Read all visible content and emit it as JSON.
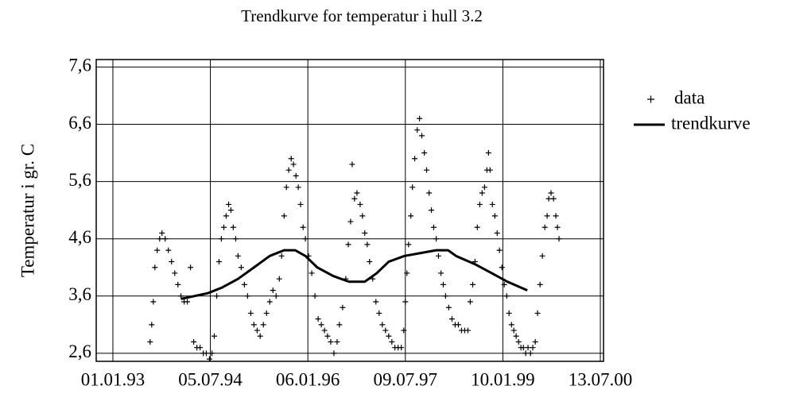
{
  "chart_data": {
    "type": "scatter",
    "title": "Trendkurve for temperatur i hull 3.2",
    "y_label": "Temperatur i gr. C",
    "xlim": [
      "1992-09-29",
      "2000-07-31"
    ],
    "ylim": [
      2.46,
      7.73
    ],
    "xticks": [
      {
        "value": "1993-01-01",
        "label": "01.01.93"
      },
      {
        "value": "1994-07-05",
        "label": "05.07.94"
      },
      {
        "value": "1996-01-06",
        "label": "06.01.96"
      },
      {
        "value": "1997-07-09",
        "label": "09.07.97"
      },
      {
        "value": "1999-01-10",
        "label": "10.01.99"
      },
      {
        "value": "2000-07-13",
        "label": "13.07.00"
      }
    ],
    "yticks": [
      {
        "value": 2.6,
        "label": "2,6"
      },
      {
        "value": 3.6,
        "label": "3,6"
      },
      {
        "value": 4.6,
        "label": "4,6"
      },
      {
        "value": 5.6,
        "label": "5,6"
      },
      {
        "value": 6.6,
        "label": "6,6"
      },
      {
        "value": 7.6,
        "label": "7,6"
      }
    ],
    "grid": true,
    "legend": "right",
    "series": [
      {
        "name": "data",
        "type": "scatter",
        "color": "#000000",
        "x": [
          "1993-07-30",
          "1993-08-08",
          "1993-08-17",
          "1993-08-26",
          "1993-09-08",
          "1993-09-22",
          "1993-10-05",
          "1993-10-23",
          "1993-11-10",
          "1993-11-28",
          "1993-12-16",
          "1994-01-03",
          "1994-01-20",
          "1994-02-07",
          "1994-02-25",
          "1994-03-15",
          "1994-04-02",
          "1994-04-20",
          "1994-05-08",
          "1994-05-26",
          "1994-06-12",
          "1994-06-30",
          "1994-07-14",
          "1994-07-27",
          "1994-08-10",
          "1994-08-23",
          "1994-09-05",
          "1994-09-19",
          "1994-10-02",
          "1994-10-16",
          "1994-10-29",
          "1994-11-11",
          "1994-11-25",
          "1994-12-08",
          "1994-12-26",
          "1995-01-13",
          "1995-01-31",
          "1995-02-18",
          "1995-03-08",
          "1995-03-26",
          "1995-04-12",
          "1995-04-30",
          "1995-05-18",
          "1995-06-05",
          "1995-06-23",
          "1995-07-11",
          "1995-07-29",
          "1995-08-11",
          "1995-08-25",
          "1995-09-07",
          "1995-09-20",
          "1995-10-04",
          "1995-10-17",
          "1995-10-31",
          "1995-11-13",
          "1995-11-26",
          "1995-12-10",
          "1995-12-23",
          "1996-01-10",
          "1996-01-28",
          "1996-02-15",
          "1996-03-04",
          "1996-03-22",
          "1996-04-09",
          "1996-04-26",
          "1996-05-14",
          "1996-06-01",
          "1996-06-19",
          "1996-07-02",
          "1996-07-20",
          "1996-08-07",
          "1996-08-21",
          "1996-09-03",
          "1996-09-12",
          "1996-09-25",
          "1996-10-09",
          "1996-10-27",
          "1996-11-09",
          "1996-11-22",
          "1996-12-06",
          "1996-12-19",
          "1997-01-06",
          "1997-01-24",
          "1997-02-11",
          "1997-03-01",
          "1997-03-19",
          "1997-04-06",
          "1997-04-24",
          "1997-05-11",
          "1997-05-29",
          "1997-06-16",
          "1997-06-30",
          "1997-07-09",
          "1997-07-18",
          "1997-07-27",
          "1997-08-09",
          "1997-08-18",
          "1997-08-31",
          "1997-09-14",
          "1997-09-27",
          "1997-10-10",
          "1997-10-24",
          "1997-11-06",
          "1997-11-20",
          "1997-12-03",
          "1997-12-16",
          "1997-12-30",
          "1998-01-12",
          "1998-01-26",
          "1998-02-08",
          "1998-02-21",
          "1998-03-11",
          "1998-03-29",
          "1998-04-16",
          "1998-05-04",
          "1998-05-22",
          "1998-06-09",
          "1998-06-27",
          "1998-07-10",
          "1998-07-24",
          "1998-08-06",
          "1998-08-19",
          "1998-09-02",
          "1998-09-15",
          "1998-09-29",
          "1998-10-12",
          "1998-10-21",
          "1998-10-30",
          "1998-11-12",
          "1998-11-26",
          "1998-12-09",
          "1998-12-22",
          "1999-01-05",
          "1999-01-18",
          "1999-02-01",
          "1999-02-14",
          "1999-02-28",
          "1999-03-13",
          "1999-03-26",
          "1999-04-09",
          "1999-04-22",
          "1999-05-06",
          "1999-05-19",
          "1999-06-01",
          "1999-06-15",
          "1999-06-28",
          "1999-07-12",
          "1999-07-25",
          "1999-08-08",
          "1999-08-21",
          "1999-09-04",
          "1999-09-17",
          "1999-09-26",
          "1999-10-09",
          "1999-10-23",
          "1999-11-05",
          "1999-11-14",
          "1999-11-23"
        ],
        "values": [
          2.8,
          3.1,
          3.5,
          4.1,
          4.4,
          4.6,
          4.7,
          4.6,
          4.4,
          4.2,
          4.0,
          3.8,
          3.6,
          3.5,
          3.5,
          4.1,
          2.8,
          2.7,
          2.7,
          2.6,
          2.6,
          2.5,
          2.6,
          2.9,
          3.6,
          4.2,
          4.6,
          4.8,
          5.0,
          5.2,
          5.1,
          4.8,
          4.6,
          4.3,
          4.1,
          3.8,
          3.6,
          3.3,
          3.1,
          3.0,
          2.9,
          3.1,
          3.3,
          3.5,
          3.7,
          3.6,
          3.9,
          4.3,
          5.0,
          5.5,
          5.8,
          6.0,
          5.9,
          5.7,
          5.5,
          5.2,
          4.8,
          4.6,
          4.3,
          4.0,
          3.6,
          3.2,
          3.1,
          3.0,
          2.9,
          2.8,
          2.6,
          2.8,
          3.1,
          3.4,
          3.9,
          4.5,
          4.9,
          5.9,
          5.3,
          5.4,
          5.2,
          5.0,
          4.7,
          4.5,
          4.2,
          3.9,
          3.5,
          3.3,
          3.1,
          3.0,
          2.9,
          2.8,
          2.7,
          2.7,
          2.7,
          3.0,
          3.5,
          4.0,
          4.5,
          5.0,
          5.5,
          6.0,
          6.5,
          6.7,
          6.4,
          6.1,
          5.8,
          5.4,
          5.1,
          4.8,
          4.6,
          4.3,
          4.0,
          3.8,
          3.6,
          3.4,
          3.2,
          3.1,
          3.1,
          3.0,
          3.0,
          3.0,
          3.5,
          3.8,
          4.2,
          4.8,
          5.2,
          5.4,
          5.5,
          5.8,
          6.1,
          5.8,
          5.2,
          5.0,
          4.7,
          4.4,
          4.1,
          3.8,
          3.6,
          3.3,
          3.1,
          3.0,
          2.9,
          2.8,
          2.7,
          2.7,
          2.6,
          2.7,
          2.6,
          2.7,
          2.8,
          3.3,
          3.8,
          4.3,
          4.8,
          5.0,
          5.3,
          5.4,
          5.3,
          5.0,
          4.8,
          4.6
        ]
      },
      {
        "name": "trendkurve",
        "type": "line",
        "color": "#000000",
        "x": [
          "1994-01-20",
          "1994-04-06",
          "1994-06-21",
          "1994-09-10",
          "1994-12-08",
          "1995-03-08",
          "1995-06-05",
          "1995-08-25",
          "1995-10-26",
          "1995-12-23",
          "1996-02-28",
          "1996-05-28",
          "1996-08-25",
          "1996-11-22",
          "1997-01-29",
          "1997-04-06",
          "1997-07-04",
          "1997-10-01",
          "1997-12-30",
          "1998-03-07",
          "1998-04-21",
          "1998-08-10",
          "1998-11-08",
          "1999-02-05",
          "1999-05-28"
        ],
        "values": [
          3.55,
          3.6,
          3.65,
          3.75,
          3.9,
          4.1,
          4.3,
          4.4,
          4.4,
          4.3,
          4.1,
          3.95,
          3.85,
          3.85,
          4.0,
          4.2,
          4.3,
          4.35,
          4.4,
          4.4,
          4.3,
          4.15,
          4.0,
          3.85,
          3.7
        ]
      }
    ]
  }
}
